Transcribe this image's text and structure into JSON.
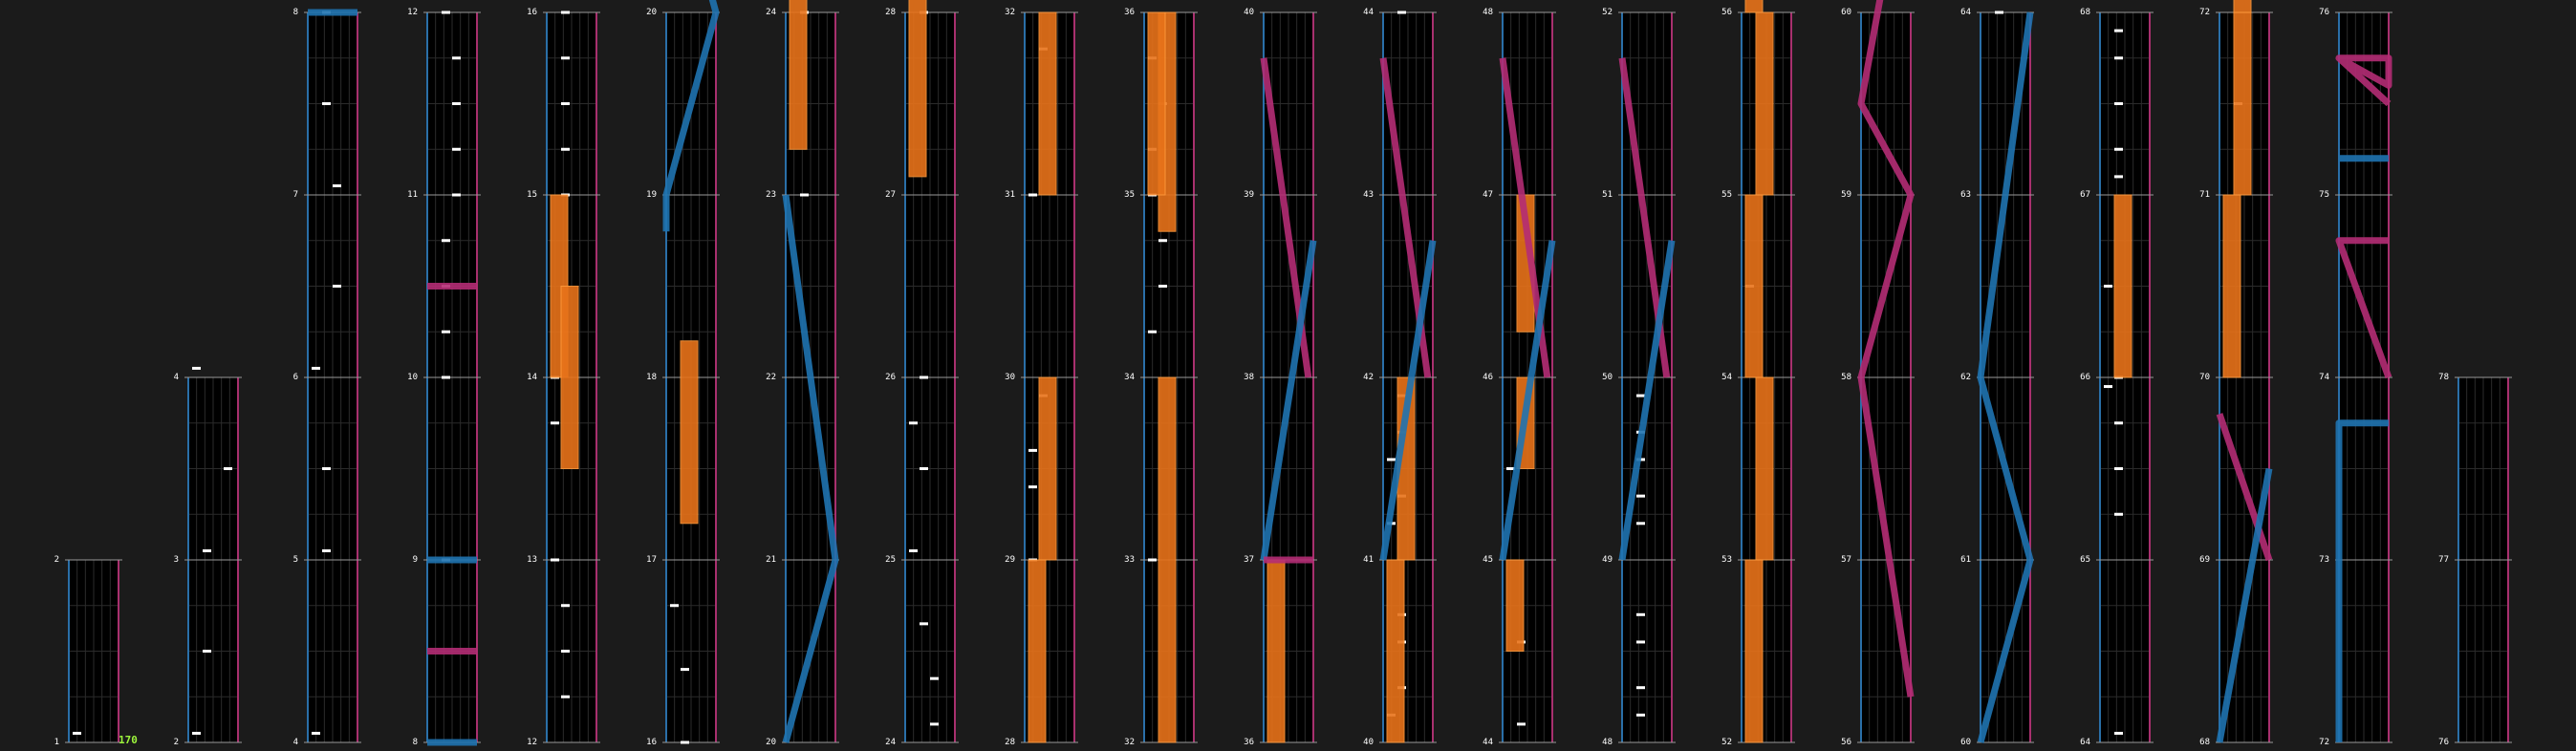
{
  "bpm_label": "170",
  "colors": {
    "background": "#1b1b1b",
    "lane": "#000000",
    "grid": "#2b2b2b",
    "bar_line": "#9a9a9a",
    "left_rail": "#2a6fa8",
    "right_rail": "#a8306e",
    "tap_note": "#ffffff",
    "hold_note": "#e8731a",
    "laser_left": "#1f73b0",
    "laser_right": "#b42c74",
    "measure_number": "#ffffff",
    "bpm": "#9df53c"
  },
  "measures_per_column": 4,
  "columns": [
    {
      "measures": [
        1,
        2
      ]
    },
    {
      "measures": [
        2,
        3,
        4
      ]
    },
    {
      "measures": [
        4,
        5,
        6,
        7,
        8
      ]
    },
    {
      "measures": [
        8,
        9,
        10,
        11,
        12
      ]
    },
    {
      "measures": [
        12,
        13,
        14,
        15,
        16
      ]
    },
    {
      "measures": [
        16,
        17,
        18,
        19,
        20
      ]
    },
    {
      "measures": [
        20,
        21,
        22,
        23,
        24
      ]
    },
    {
      "measures": [
        24,
        25,
        26,
        27,
        28
      ]
    },
    {
      "measures": [
        28,
        29,
        30,
        31,
        32
      ]
    },
    {
      "measures": [
        32,
        33,
        34,
        35,
        36
      ]
    },
    {
      "measures": [
        36,
        37,
        38,
        39,
        40
      ]
    },
    {
      "measures": [
        40,
        41,
        42,
        43,
        44
      ]
    },
    {
      "measures": [
        44,
        45,
        46,
        47,
        48
      ]
    },
    {
      "measures": [
        48,
        49,
        50,
        51,
        52
      ]
    },
    {
      "measures": [
        52,
        53,
        54,
        55,
        56
      ]
    },
    {
      "measures": [
        56,
        57,
        58,
        59,
        60
      ]
    },
    {
      "measures": [
        60,
        61,
        62,
        63,
        64
      ]
    },
    {
      "measures": [
        64,
        65,
        66,
        67,
        68
      ]
    },
    {
      "measures": [
        68,
        69,
        70,
        71,
        72
      ]
    },
    {
      "measures": [
        72,
        73,
        74,
        75,
        76
      ]
    },
    {
      "measures": [
        76,
        77,
        78
      ]
    }
  ]
}
